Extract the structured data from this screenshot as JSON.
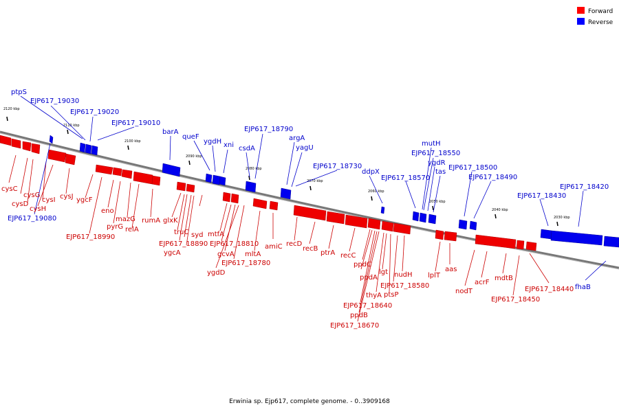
{
  "caption": "Erwinia sp. Ejp617, complete genome. - 0..3909168",
  "legend": [
    {
      "label": "Forward",
      "color": "#ff0000"
    },
    {
      "label": "Reverse",
      "color": "#0000ff"
    }
  ],
  "scale_ticks": [
    "2120 kbp",
    "2110 kbp",
    "2100 kbp",
    "2090 kbp",
    "2080 kbp",
    "2070 kbp",
    "2060 kbp",
    "2050 kbp",
    "2040 kbp",
    "2030 kbp"
  ],
  "genes_forward": [
    "cysC",
    "cysG",
    "cysD",
    "cysI",
    "cysH",
    "cysJ",
    "ygcF",
    "EJP617_18990",
    "eno",
    "pyrG",
    "mazG",
    "relA",
    "rumA",
    "glxK",
    "truC",
    "syd",
    "EJP617_18890",
    "ygcA",
    "mtfA",
    "gcvA",
    "EJP617_18810",
    "ygdD",
    "EJP617_18780",
    "mltA",
    "amiC",
    "recD",
    "recB",
    "ptrA",
    "recC",
    "ppdC",
    "ppdA",
    "thyA",
    "lgt",
    "ptsP",
    "nudH",
    "EJP617_18580",
    "EJP617_18640",
    "ppdB",
    "EJP617_18670",
    "lplT",
    "aas",
    "nodT",
    "acrF",
    "mdtB",
    "EJP617_18450",
    "EJP617_18440"
  ],
  "genes_reverse": [
    "ptpS",
    "EJP617_19030",
    "EJP617_19020",
    "EJP617_19010",
    "EJP617_19080",
    "barA",
    "queF",
    "ygdH",
    "xni",
    "EJP617_18790",
    "csdA",
    "argA",
    "yagU",
    "EJP617_18730",
    "ddpX",
    "EJP617_18570",
    "mutH",
    "EJP617_18550",
    "ygdR",
    "tas",
    "EJP617_18500",
    "EJP617_18490",
    "EJP617_18430",
    "EJP617_18420",
    "fhaB"
  ]
}
